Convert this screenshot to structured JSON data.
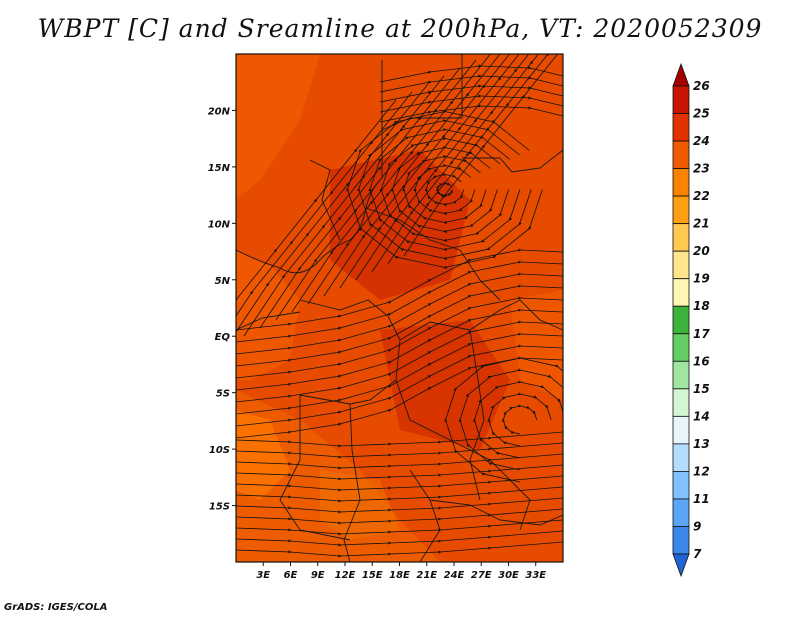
{
  "title": "WBPT [C] and Sreamline at 200hPa, VT: 2020052309",
  "footer": "GrADS: IGES/COLA",
  "map": {
    "lon_range": [
      0,
      36
    ],
    "lat_range": [
      -20,
      25
    ],
    "lon_ticks": [
      "3E",
      "6E",
      "9E",
      "12E",
      "15E",
      "18E",
      "21E",
      "24E",
      "27E",
      "30E",
      "33E"
    ],
    "lon_tick_values": [
      3,
      6,
      9,
      12,
      15,
      18,
      21,
      24,
      27,
      30,
      33
    ],
    "lat_ticks": [
      "20N",
      "15N",
      "10N",
      "5N",
      "EQ",
      "5S",
      "10S",
      "15S"
    ],
    "lat_tick_values": [
      20,
      15,
      10,
      5,
      0,
      -5,
      -10,
      -15
    ],
    "field": "WBPT",
    "field_range_c": [
      23,
      25
    ],
    "streamline_color": "#111111",
    "vortex_center_lat_lon": [
      13,
      23
    ]
  },
  "colorbar": {
    "labels": [
      "26",
      "25",
      "24",
      "23",
      "22",
      "21",
      "20",
      "19",
      "18",
      "17",
      "16",
      "15",
      "14",
      "13",
      "12",
      "11",
      "9",
      "7"
    ],
    "colors": [
      "#a50000",
      "#c81400",
      "#e13200",
      "#f05a00",
      "#fa8200",
      "#ffa014",
      "#ffc850",
      "#ffe68c",
      "#fff5b4",
      "#3cb43c",
      "#64cd64",
      "#a0e6a0",
      "#d2f5d2",
      "#e6f5fa",
      "#b4dcff",
      "#82c3ff",
      "#5aa5f5",
      "#3c87eb",
      "#1e64d2"
    ]
  }
}
